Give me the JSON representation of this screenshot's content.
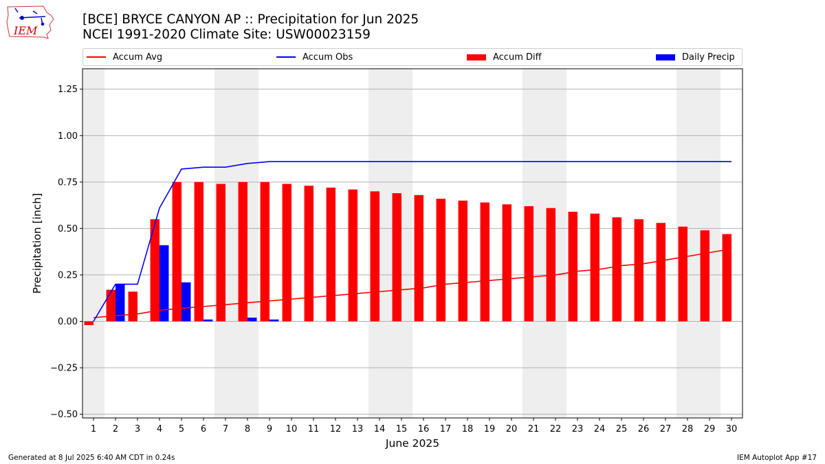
{
  "header": {
    "title_line1": "[BCE] BRYCE CANYON AP :: Precipitation for Jun 2025",
    "title_line2": "NCEI 1991-2020 Climate Site: USW00023159"
  },
  "logo": {
    "text": "IEM",
    "icon": "iowa-state-outline-logo"
  },
  "legend": {
    "accum_avg": "Accum Avg",
    "accum_obs": "Accum Obs",
    "accum_diff": "Accum Diff",
    "daily_precip": "Daily Precip"
  },
  "footer": {
    "left": "Generated at 8 Jul 2025 6:40 AM CDT in 0.24s",
    "right": "IEM Autoplot App #17"
  },
  "colors": {
    "avg": "#ff0000",
    "obs": "#0000ff",
    "diff": "#ff0000",
    "daily": "#0000ff",
    "weekend_shade": "#eeeeee",
    "grid": "#b0b0b0"
  },
  "chart_data": {
    "type": "bar",
    "title": "[BCE] BRYCE CANYON AP :: Precipitation for Jun 2025",
    "subtitle": "NCEI 1991-2020 Climate Site: USW00023159",
    "xlabel": "June 2025",
    "ylabel": "Precipitation [inch]",
    "ylim": [
      -0.52,
      1.36
    ],
    "yticks": [
      -0.5,
      -0.25,
      0.0,
      0.25,
      0.5,
      0.75,
      1.0,
      1.25
    ],
    "ytick_labels": [
      "−0.50",
      "−0.25",
      "0.00",
      "0.25",
      "0.50",
      "0.75",
      "1.00",
      "1.25"
    ],
    "x": [
      1,
      2,
      3,
      4,
      5,
      6,
      7,
      8,
      9,
      10,
      11,
      12,
      13,
      14,
      15,
      16,
      17,
      18,
      19,
      20,
      21,
      22,
      23,
      24,
      25,
      26,
      27,
      28,
      29,
      30
    ],
    "grid": "horizontal",
    "legend_position": "top",
    "shaded_days": [
      1,
      7,
      8,
      14,
      15,
      21,
      22,
      28,
      29
    ],
    "series": [
      {
        "name": "Accum Avg",
        "kind": "line",
        "values": [
          0.02,
          0.03,
          0.04,
          0.06,
          0.07,
          0.08,
          0.09,
          0.1,
          0.11,
          0.12,
          0.13,
          0.14,
          0.15,
          0.16,
          0.17,
          0.18,
          0.2,
          0.21,
          0.22,
          0.23,
          0.24,
          0.25,
          0.27,
          0.28,
          0.3,
          0.31,
          0.33,
          0.35,
          0.37,
          0.39
        ]
      },
      {
        "name": "Accum Obs",
        "kind": "line",
        "values": [
          0.0,
          0.2,
          0.2,
          0.61,
          0.82,
          0.83,
          0.83,
          0.85,
          0.86,
          0.86,
          0.86,
          0.86,
          0.86,
          0.86,
          0.86,
          0.86,
          0.86,
          0.86,
          0.86,
          0.86,
          0.86,
          0.86,
          0.86,
          0.86,
          0.86,
          0.86,
          0.86,
          0.86,
          0.86,
          0.86
        ]
      },
      {
        "name": "Accum Diff",
        "kind": "bar",
        "values": [
          -0.02,
          0.17,
          0.16,
          0.55,
          0.75,
          0.75,
          0.74,
          0.75,
          0.75,
          0.74,
          0.73,
          0.72,
          0.71,
          0.7,
          0.69,
          0.68,
          0.66,
          0.65,
          0.64,
          0.63,
          0.62,
          0.61,
          0.59,
          0.58,
          0.56,
          0.55,
          0.53,
          0.51,
          0.49,
          0.47
        ]
      },
      {
        "name": "Daily Precip",
        "kind": "bar",
        "values": [
          0.0,
          0.2,
          0.0,
          0.41,
          0.21,
          0.01,
          0.0,
          0.02,
          0.01,
          0,
          0,
          0,
          0,
          0,
          0,
          0,
          0,
          0,
          0,
          0,
          0,
          0,
          0,
          0,
          0,
          0,
          0,
          0,
          0,
          0
        ]
      }
    ]
  }
}
